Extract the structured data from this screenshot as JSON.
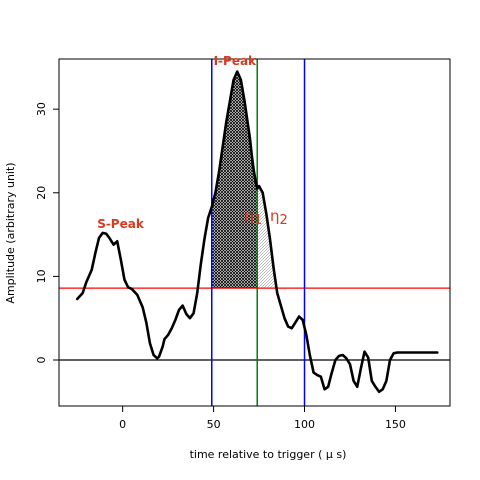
{
  "chart_data": {
    "type": "line",
    "xlabel": "time relative to trigger ( µ s)",
    "ylabel": "Amplitude (arbitrary unit)",
    "xlim": [
      -35,
      180
    ],
    "ylim": [
      -5.5,
      36
    ],
    "xticks": [
      0,
      50,
      100,
      150
    ],
    "yticks": [
      0,
      10,
      20,
      30
    ],
    "series": [
      {
        "color": "#000000",
        "x": [
          -25,
          -22,
          -20,
          -17,
          -15,
          -13,
          -11,
          -9,
          -7,
          -5,
          -3,
          -1,
          1,
          3,
          5,
          8,
          11,
          13,
          15,
          17,
          19,
          20,
          22,
          23,
          25,
          27,
          29,
          31,
          33,
          35,
          37,
          39,
          41,
          43,
          45,
          47,
          49,
          51,
          53,
          55,
          57,
          59,
          61,
          63,
          65,
          67,
          69,
          70,
          71,
          72,
          73,
          74,
          75,
          77,
          79,
          81,
          83,
          85,
          87,
          89,
          91,
          93,
          95,
          97,
          99,
          101,
          103,
          105,
          107,
          109,
          111,
          113,
          115,
          117,
          119,
          121,
          123,
          125,
          127,
          129,
          131,
          133,
          135,
          137,
          139,
          141,
          143,
          145,
          147,
          149,
          151,
          153,
          155,
          157,
          159,
          161,
          163,
          165,
          167,
          169,
          171,
          173
        ],
        "y": [
          7.3,
          8.0,
          9.3,
          10.8,
          12.8,
          14.6,
          15.2,
          15.1,
          14.5,
          13.8,
          14.2,
          12.0,
          9.6,
          8.7,
          8.5,
          7.8,
          6.3,
          4.5,
          2.0,
          0.6,
          0.2,
          0.4,
          1.6,
          2.5,
          3.0,
          3.8,
          4.8,
          6.0,
          6.5,
          5.5,
          5.0,
          5.6,
          8.0,
          11.5,
          14.5,
          17.0,
          18.3,
          20.0,
          22.5,
          25.5,
          28.5,
          31.0,
          33.5,
          34.5,
          33.5,
          31.0,
          28.0,
          26.5,
          24.5,
          22.8,
          21.5,
          20.5,
          20.8,
          20.0,
          17.5,
          14.5,
          11.0,
          8.0,
          6.5,
          5.0,
          4.0,
          3.8,
          4.5,
          5.2,
          4.8,
          3.0,
          0.5,
          -1.5,
          -1.8,
          -2.0,
          -3.5,
          -3.2,
          -1.5,
          0.0,
          0.5,
          0.6,
          0.2,
          -0.5,
          -2.5,
          -3.2,
          -1.0,
          1.0,
          0.3,
          -2.5,
          -3.2,
          -3.8,
          -3.5,
          -2.5,
          0.0,
          0.8,
          0.9,
          0.9,
          0.9,
          0.9,
          0.9,
          0.9,
          0.9,
          0.9,
          0.9,
          0.9,
          0.9,
          0.9
        ]
      }
    ],
    "hlines": [
      {
        "y": 0,
        "color": "#000000"
      },
      {
        "y": 8.6,
        "color": "#ff0000"
      }
    ],
    "vlines": [
      {
        "x": 49,
        "color": "#0000ff"
      },
      {
        "x": 74,
        "color": "#008000"
      },
      {
        "x": 100,
        "color": "#0000ff"
      }
    ],
    "shading": [
      {
        "from": 49,
        "to": 74,
        "baseline": 8.6,
        "style": "dense-hatch"
      },
      {
        "from": 74,
        "to": 100,
        "baseline": 8.6,
        "style": "light-hatch"
      }
    ],
    "annotations": [
      {
        "text": "S-Peak",
        "x": -14,
        "y": 15.8,
        "kind": "peak"
      },
      {
        "text": "I-Peak",
        "x": 50,
        "y": 35.3,
        "kind": "peak"
      },
      {
        "text": "η",
        "sub": "1",
        "x": 67,
        "y": 16.6,
        "kind": "eta"
      },
      {
        "text": "η",
        "sub": "2",
        "x": 81,
        "y": 16.6,
        "kind": "eta"
      }
    ]
  }
}
